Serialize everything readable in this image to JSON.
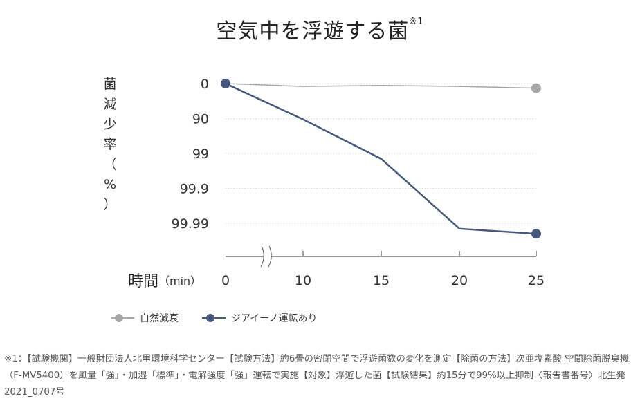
{
  "chart_data": {
    "type": "line",
    "title": "空気中を浮遊する菌",
    "title_note": "※1",
    "ylabel": "菌\n減\n少\n率\n（\n%\n）",
    "xlabel": "時間",
    "xlabel_unit": "（min）",
    "y_scale": "log-reduction",
    "y_ticks": [
      "0",
      "90",
      "99",
      "99.9",
      "99.99"
    ],
    "x_ticks": [
      "0",
      "10",
      "15",
      "20",
      "25"
    ],
    "x_axis_break": true,
    "grid": "dashed horizontal",
    "series": [
      {
        "name": "自然減衰",
        "color": "#a6a6a6",
        "x": [
          0,
          10,
          15,
          20,
          25
        ],
        "y": [
          0,
          17,
          12,
          17,
          26
        ]
      },
      {
        "name": "ジアイーノ運転あり",
        "color": "#46587e",
        "x": [
          0,
          10,
          15,
          20,
          25
        ],
        "y": [
          0,
          90.5,
          99.3,
          99.993,
          99.995
        ]
      }
    ],
    "legend_position": "bottom-left"
  },
  "footnote": "※1：【試験機関】一般財団法人北里環境科学センター【試験方法】約6畳の密閉空間で浮遊菌数の変化を測定【除菌の方法】次亜塩素酸 空間除菌脱臭機（F-MV5400）を風量「強」・加湿「標準」・電解強度「強」運転で実施【対象】浮遊した菌【試験結果】約15分で99%以上抑制〈報告書番号〉北生発2021_0707号"
}
